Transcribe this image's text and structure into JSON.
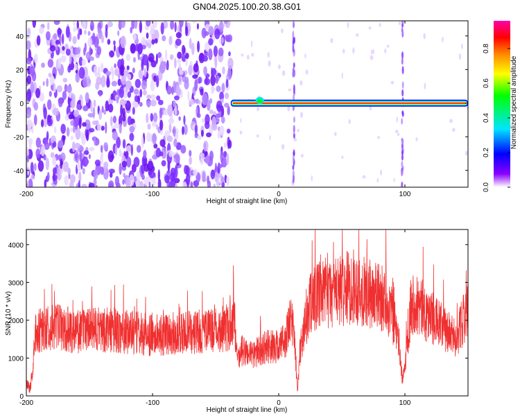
{
  "title": "GN04.2025.100.20.38.G01",
  "chart_data": [
    {
      "type": "heatmap",
      "xlabel": "Height of straight line (km)",
      "ylabel": "Frequency (Hz)",
      "xlim": [
        -200,
        150
      ],
      "ylim": [
        -50,
        49
      ],
      "xticks": [
        -200,
        -100,
        0,
        100
      ],
      "yticks": [
        -40,
        -20,
        0,
        20,
        40
      ],
      "colorbar": {
        "label": "Normalized spectral amplitude",
        "range": [
          0.0,
          0.96
        ],
        "ticks": [
          0.0,
          0.2,
          0.4,
          0.6,
          0.8
        ],
        "tick_labels": [
          "0.0",
          "0.2",
          "0.4",
          "0.6",
          "0.8"
        ],
        "colors": [
          "#ffffff",
          "#8a00ff",
          "#0000ff",
          "#00e5ff",
          "#00ff00",
          "#ffff00",
          "#ff8800",
          "#ff0000",
          "#ff00aa"
        ]
      },
      "features": {
        "noise_region_x": [
          -200,
          -38
        ],
        "signal_line_frequency": 0,
        "signal_line_x": [
          -38,
          150
        ],
        "bright_columns_x": [
          12,
          98
        ]
      }
    },
    {
      "type": "line",
      "xlabel": "Height of straight line (km)",
      "ylabel": "SNR (10 * v/v)",
      "xlim": [
        -200,
        150
      ],
      "ylim": [
        0,
        4400
      ],
      "xticks": [
        -200,
        -100,
        0,
        100
      ],
      "yticks": [
        0,
        1000,
        2000,
        3000,
        4000
      ],
      "color": "#f03030",
      "x": [
        -200,
        -197,
        -195,
        -193,
        -190,
        -185,
        -175,
        -160,
        -150,
        -140,
        -120,
        -100,
        -80,
        -60,
        -50,
        -40,
        -35,
        -33,
        -30,
        -20,
        -10,
        0,
        5,
        10,
        12,
        15,
        17,
        20,
        25,
        30,
        40,
        50,
        60,
        70,
        80,
        85,
        90,
        95,
        98,
        100,
        102,
        105,
        110,
        120,
        130,
        140,
        150
      ],
      "values": [
        300,
        200,
        700,
        1600,
        1700,
        1800,
        1800,
        1700,
        1750,
        1750,
        1700,
        1600,
        1650,
        1700,
        1750,
        1800,
        2000,
        800,
        1200,
        1100,
        1300,
        1300,
        1500,
        2000,
        1800,
        100,
        1300,
        1700,
        2500,
        2600,
        2700,
        2800,
        2900,
        2700,
        2600,
        2500,
        2100,
        1500,
        400,
        800,
        1500,
        2500,
        2400,
        2100,
        1800,
        1500,
        2300
      ]
    }
  ]
}
